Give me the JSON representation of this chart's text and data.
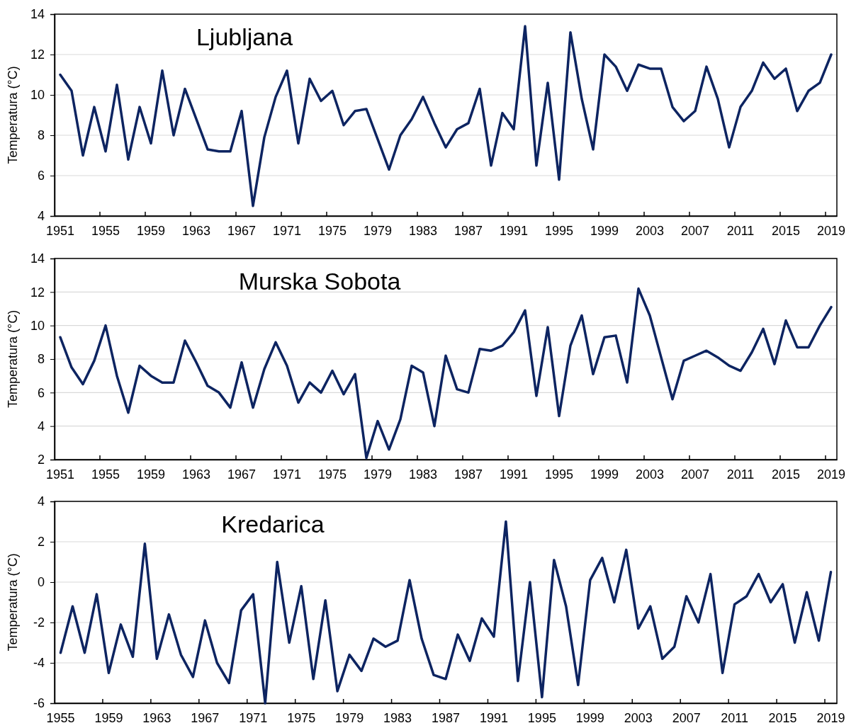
{
  "chart_data": [
    {
      "type": "line",
      "title": "Ljubljana",
      "ylabel": "Temperatura (°C)",
      "categories": [
        "1951",
        null,
        null,
        null,
        "1955",
        null,
        null,
        null,
        "1959",
        null,
        null,
        null,
        "1963",
        null,
        null,
        null,
        "1967",
        null,
        null,
        null,
        "1971",
        null,
        null,
        null,
        "1975",
        null,
        null,
        null,
        "1979",
        null,
        null,
        null,
        "1983",
        null,
        null,
        null,
        "1987",
        null,
        null,
        null,
        "1991",
        null,
        null,
        null,
        "1995",
        null,
        null,
        null,
        "1999",
        null,
        null,
        null,
        "2003",
        null,
        null,
        null,
        "2007",
        null,
        null,
        null,
        "2011",
        null,
        null,
        null,
        "2015",
        null,
        null,
        null,
        "2019"
      ],
      "series": [
        {
          "color": "#0d2461",
          "values": [
            11.0,
            10.2,
            7.0,
            9.4,
            7.2,
            10.5,
            6.8,
            9.4,
            7.6,
            11.2,
            8.0,
            10.3,
            8.8,
            7.3,
            7.2,
            7.2,
            9.2,
            4.5,
            7.9,
            9.9,
            11.2,
            7.6,
            10.8,
            9.7,
            10.2,
            8.5,
            9.2,
            9.3,
            7.8,
            6.3,
            8.0,
            8.8,
            9.9,
            8.6,
            7.4,
            8.3,
            8.6,
            10.3,
            6.5,
            9.1,
            8.3,
            13.4,
            6.5,
            10.6,
            5.8,
            13.1,
            9.8,
            7.3,
            12.0,
            11.4,
            10.2,
            11.5,
            11.3,
            11.3,
            9.4,
            8.7,
            9.2,
            11.4,
            9.8,
            7.4,
            9.4,
            10.2,
            11.6,
            10.8,
            11.3,
            9.2,
            10.2,
            10.6,
            12.0
          ]
        }
      ],
      "ylim": [
        4,
        14
      ],
      "yticks": [
        4,
        6,
        8,
        10,
        12,
        14
      ],
      "grid": "y",
      "legend": false,
      "marker": "none",
      "line_style": "solid"
    },
    {
      "type": "line",
      "title": "Murska Sobota",
      "ylabel": "Temperatura (°C)",
      "categories": [
        "1951",
        null,
        null,
        null,
        "1955",
        null,
        null,
        null,
        "1959",
        null,
        null,
        null,
        "1963",
        null,
        null,
        null,
        "1967",
        null,
        null,
        null,
        "1971",
        null,
        null,
        null,
        "1975",
        null,
        null,
        null,
        "1979",
        null,
        null,
        null,
        "1983",
        null,
        null,
        null,
        "1987",
        null,
        null,
        null,
        "1991",
        null,
        null,
        null,
        "1995",
        null,
        null,
        null,
        "1999",
        null,
        null,
        null,
        "2003",
        null,
        null,
        null,
        "2007",
        null,
        null,
        null,
        "2011",
        null,
        null,
        null,
        "2015",
        null,
        null,
        null,
        "2019"
      ],
      "series": [
        {
          "color": "#0d2461",
          "values": [
            9.3,
            7.5,
            6.5,
            7.9,
            10.0,
            7.0,
            4.8,
            7.6,
            7.0,
            6.6,
            6.6,
            9.1,
            7.8,
            6.4,
            6.0,
            5.1,
            7.8,
            5.1,
            7.4,
            9.0,
            7.6,
            5.4,
            6.6,
            6.0,
            7.3,
            5.9,
            7.1,
            2.1,
            4.3,
            2.6,
            4.4,
            7.6,
            7.2,
            4.0,
            8.2,
            6.2,
            6.0,
            8.6,
            8.5,
            8.8,
            9.6,
            10.9,
            5.8,
            9.9,
            4.6,
            8.8,
            10.6,
            7.1,
            9.3,
            9.4,
            6.6,
            12.2,
            10.6,
            8.1,
            5.6,
            7.9,
            8.2,
            8.5,
            8.1,
            7.6,
            7.3,
            8.4,
            9.8,
            7.7,
            10.3,
            8.7,
            8.7,
            10.0,
            11.1
          ]
        }
      ],
      "ylim": [
        2,
        14
      ],
      "yticks": [
        2,
        4,
        6,
        8,
        10,
        12,
        14
      ],
      "grid": "y",
      "legend": false,
      "marker": "none",
      "line_style": "solid"
    },
    {
      "type": "line",
      "title": "Kredarica",
      "ylabel": "Temperatura (°C)",
      "categories": [
        "1955",
        null,
        null,
        null,
        "1959",
        null,
        null,
        null,
        "1963",
        null,
        null,
        null,
        "1967",
        null,
        null,
        null,
        "1971",
        null,
        null,
        null,
        "1975",
        null,
        null,
        null,
        "1979",
        null,
        null,
        null,
        "1983",
        null,
        null,
        null,
        "1987",
        null,
        null,
        null,
        "1991",
        null,
        null,
        null,
        "1995",
        null,
        null,
        null,
        "1999",
        null,
        null,
        null,
        "2003",
        null,
        null,
        null,
        "2007",
        null,
        null,
        null,
        "2011",
        null,
        null,
        null,
        "2015",
        null,
        null,
        null,
        "2019"
      ],
      "series": [
        {
          "color": "#0d2461",
          "values": [
            -3.5,
            -1.2,
            -3.5,
            -0.6,
            -4.5,
            -2.1,
            -3.7,
            1.9,
            -3.8,
            -1.6,
            -3.6,
            -4.7,
            -1.9,
            -4.0,
            -5.0,
            -1.4,
            -0.6,
            -6.0,
            1.0,
            -3.0,
            -0.2,
            -4.8,
            -0.9,
            -5.4,
            -3.6,
            -4.4,
            -2.8,
            -3.2,
            -2.9,
            0.1,
            -2.8,
            -4.6,
            -4.8,
            -2.6,
            -3.9,
            -1.8,
            -2.7,
            3.0,
            -4.9,
            0.0,
            -5.7,
            1.1,
            -1.2,
            -5.1,
            0.1,
            1.2,
            -1.0,
            1.6,
            -2.3,
            -1.2,
            -3.8,
            -3.2,
            -0.7,
            -2.0,
            0.4,
            -4.5,
            -1.1,
            -0.7,
            0.4,
            -1.0,
            -0.1,
            -3.0,
            -0.5,
            -2.9,
            0.5
          ]
        }
      ],
      "ylim": [
        -6,
        4
      ],
      "yticks": [
        -6,
        -4,
        -2,
        0,
        2,
        4
      ],
      "grid": "y",
      "legend": false,
      "marker": "none",
      "line_style": "solid"
    }
  ]
}
